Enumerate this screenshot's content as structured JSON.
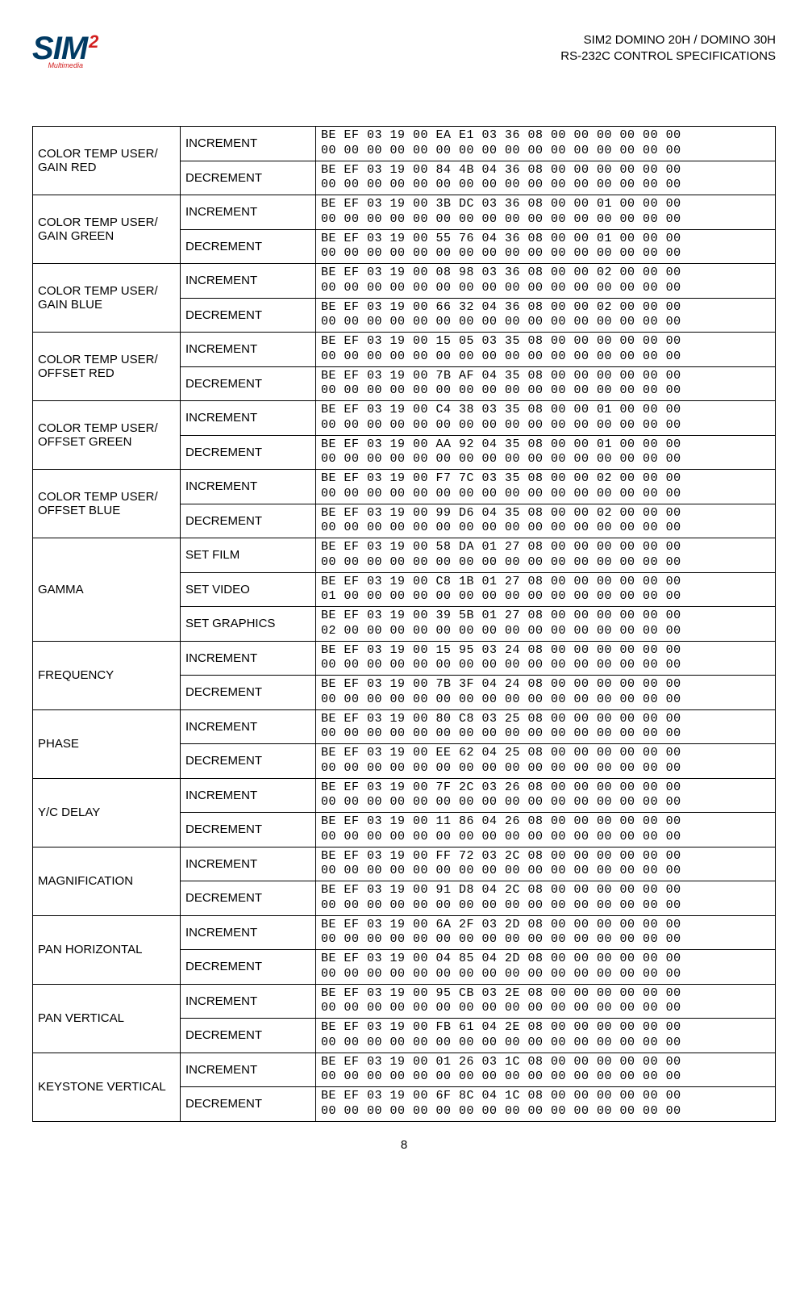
{
  "header": {
    "logo_s": "S",
    "logo_i": "I",
    "logo_m": "M",
    "logo_2": "2",
    "logo_sub": "Multimedia",
    "title_line1": "SIM2 DOMINO 20H / DOMINO 30H",
    "title_line2": "RS-232C CONTROL SPECIFICATIONS"
  },
  "labels": {
    "increment": "INCREMENT",
    "decrement": "DECREMENT",
    "set_film": "SET FILM",
    "set_video": "SET VIDEO",
    "set_graphics": "SET GRAPHICS"
  },
  "page_number": "8",
  "rows": [
    {
      "param": "COLOR TEMP USER/ GAIN RED",
      "sub": [
        {
          "action_key": "increment",
          "hex": "BE EF 03 19 00 EA E1 03 36 08 00 00 00 00 00 00\n00 00 00 00 00 00 00 00 00 00 00 00 00 00 00 00"
        },
        {
          "action_key": "decrement",
          "hex": "BE EF 03 19 00 84 4B 04 36 08 00 00 00 00 00 00\n00 00 00 00 00 00 00 00 00 00 00 00 00 00 00 00"
        }
      ]
    },
    {
      "param": "COLOR TEMP USER/ GAIN GREEN",
      "sub": [
        {
          "action_key": "increment",
          "hex": "BE EF 03 19 00 3B DC 03 36 08 00 00 01 00 00 00\n00 00 00 00 00 00 00 00 00 00 00 00 00 00 00 00"
        },
        {
          "action_key": "decrement",
          "hex": "BE EF 03 19 00 55 76 04 36 08 00 00 01 00 00 00\n00 00 00 00 00 00 00 00 00 00 00 00 00 00 00 00"
        }
      ]
    },
    {
      "param": "COLOR TEMP USER/ GAIN BLUE",
      "sub": [
        {
          "action_key": "increment",
          "hex": "BE EF 03 19 00 08 98 03 36 08 00 00 02 00 00 00\n00 00 00 00 00 00 00 00 00 00 00 00 00 00 00 00"
        },
        {
          "action_key": "decrement",
          "hex": "BE EF 03 19 00 66 32 04 36 08 00 00 02 00 00 00\n00 00 00 00 00 00 00 00 00 00 00 00 00 00 00 00"
        }
      ]
    },
    {
      "param": "COLOR TEMP USER/ OFFSET RED",
      "sub": [
        {
          "action_key": "increment",
          "hex": "BE EF 03 19 00 15 05 03 35 08 00 00 00 00 00 00\n00 00 00 00 00 00 00 00 00 00 00 00 00 00 00 00"
        },
        {
          "action_key": "decrement",
          "hex": "BE EF 03 19 00 7B AF 04 35 08 00 00 00 00 00 00\n00 00 00 00 00 00 00 00 00 00 00 00 00 00 00 00"
        }
      ]
    },
    {
      "param": "COLOR TEMP USER/ OFFSET GREEN",
      "sub": [
        {
          "action_key": "increment",
          "hex": "BE EF 03 19 00 C4 38 03 35 08 00 00 01 00 00 00\n00 00 00 00 00 00 00 00 00 00 00 00 00 00 00 00"
        },
        {
          "action_key": "decrement",
          "hex": "BE EF 03 19 00 AA 92 04 35 08 00 00 01 00 00 00\n00 00 00 00 00 00 00 00 00 00 00 00 00 00 00 00"
        }
      ]
    },
    {
      "param": "COLOR TEMP USER/ OFFSET BLUE",
      "sub": [
        {
          "action_key": "increment",
          "hex": "BE EF 03 19 00 F7 7C 03 35 08 00 00 02 00 00 00\n00 00 00 00 00 00 00 00 00 00 00 00 00 00 00 00"
        },
        {
          "action_key": "decrement",
          "hex": "BE EF 03 19 00 99 D6 04 35 08 00 00 02 00 00 00\n00 00 00 00 00 00 00 00 00 00 00 00 00 00 00 00"
        }
      ]
    },
    {
      "param": "GAMMA",
      "sub": [
        {
          "action_key": "set_film",
          "hex": "BE EF 03 19 00 58 DA 01 27 08 00 00 00 00 00 00\n00 00 00 00 00 00 00 00 00 00 00 00 00 00 00 00"
        },
        {
          "action_key": "set_video",
          "hex": "BE EF 03 19 00 C8 1B 01 27 08 00 00 00 00 00 00\n01 00 00 00 00 00 00 00 00 00 00 00 00 00 00 00"
        },
        {
          "action_key": "set_graphics",
          "hex": "BE EF 03 19 00 39 5B 01 27 08 00 00 00 00 00 00\n02 00 00 00 00 00 00 00 00 00 00 00 00 00 00 00"
        }
      ]
    },
    {
      "param": "FREQUENCY",
      "sub": [
        {
          "action_key": "increment",
          "hex": "BE EF 03 19 00 15 95 03 24 08 00 00 00 00 00 00\n00 00 00 00 00 00 00 00 00 00 00 00 00 00 00 00"
        },
        {
          "action_key": "decrement",
          "hex": "BE EF 03 19 00 7B 3F 04 24 08 00 00 00 00 00 00\n00 00 00 00 00 00 00 00 00 00 00 00 00 00 00 00"
        }
      ]
    },
    {
      "param": "PHASE",
      "sub": [
        {
          "action_key": "increment",
          "hex": "BE EF 03 19 00 80 C8 03 25 08 00 00 00 00 00 00\n00 00 00 00 00 00 00 00 00 00 00 00 00 00 00 00"
        },
        {
          "action_key": "decrement",
          "hex": "BE EF 03 19 00 EE 62 04 25 08 00 00 00 00 00 00\n00 00 00 00 00 00 00 00 00 00 00 00 00 00 00 00"
        }
      ]
    },
    {
      "param": "Y/C DELAY",
      "sub": [
        {
          "action_key": "increment",
          "hex": "BE EF 03 19 00 7F 2C 03 26 08 00 00 00 00 00 00\n00 00 00 00 00 00 00 00 00 00 00 00 00 00 00 00"
        },
        {
          "action_key": "decrement",
          "hex": "BE EF 03 19 00 11 86 04 26 08 00 00 00 00 00 00\n00 00 00 00 00 00 00 00 00 00 00 00 00 00 00 00"
        }
      ]
    },
    {
      "param": "MAGNIFICATION",
      "sub": [
        {
          "action_key": "increment",
          "hex": "BE EF 03 19 00 FF 72 03 2C 08 00 00 00 00 00 00\n00 00 00 00 00 00 00 00 00 00 00 00 00 00 00 00"
        },
        {
          "action_key": "decrement",
          "hex": "BE EF 03 19 00 91 D8 04 2C 08 00 00 00 00 00 00\n00 00 00 00 00 00 00 00 00 00 00 00 00 00 00 00"
        }
      ]
    },
    {
      "param": "PAN HORIZONTAL",
      "sub": [
        {
          "action_key": "increment",
          "hex": "BE EF 03 19 00 6A 2F 03 2D 08 00 00 00 00 00 00\n00 00 00 00 00 00 00 00 00 00 00 00 00 00 00 00"
        },
        {
          "action_key": "decrement",
          "hex": "BE EF 03 19 00 04 85 04 2D 08 00 00 00 00 00 00\n00 00 00 00 00 00 00 00 00 00 00 00 00 00 00 00"
        }
      ]
    },
    {
      "param": "PAN VERTICAL",
      "sub": [
        {
          "action_key": "increment",
          "hex": "BE EF 03 19 00 95 CB 03 2E 08 00 00 00 00 00 00\n00 00 00 00 00 00 00 00 00 00 00 00 00 00 00 00"
        },
        {
          "action_key": "decrement",
          "hex": "BE EF 03 19 00 FB 61 04 2E 08 00 00 00 00 00 00\n00 00 00 00 00 00 00 00 00 00 00 00 00 00 00 00"
        }
      ]
    },
    {
      "param": "KEYSTONE VERTICAL",
      "sub": [
        {
          "action_key": "increment",
          "hex": "BE EF 03 19 00 01 26 03 1C 08 00 00 00 00 00 00\n00 00 00 00 00 00 00 00 00 00 00 00 00 00 00 00"
        },
        {
          "action_key": "decrement",
          "hex": "BE EF 03 19 00 6F 8C 04 1C 08 00 00 00 00 00 00\n00 00 00 00 00 00 00 00 00 00 00 00 00 00 00 00"
        }
      ]
    }
  ]
}
